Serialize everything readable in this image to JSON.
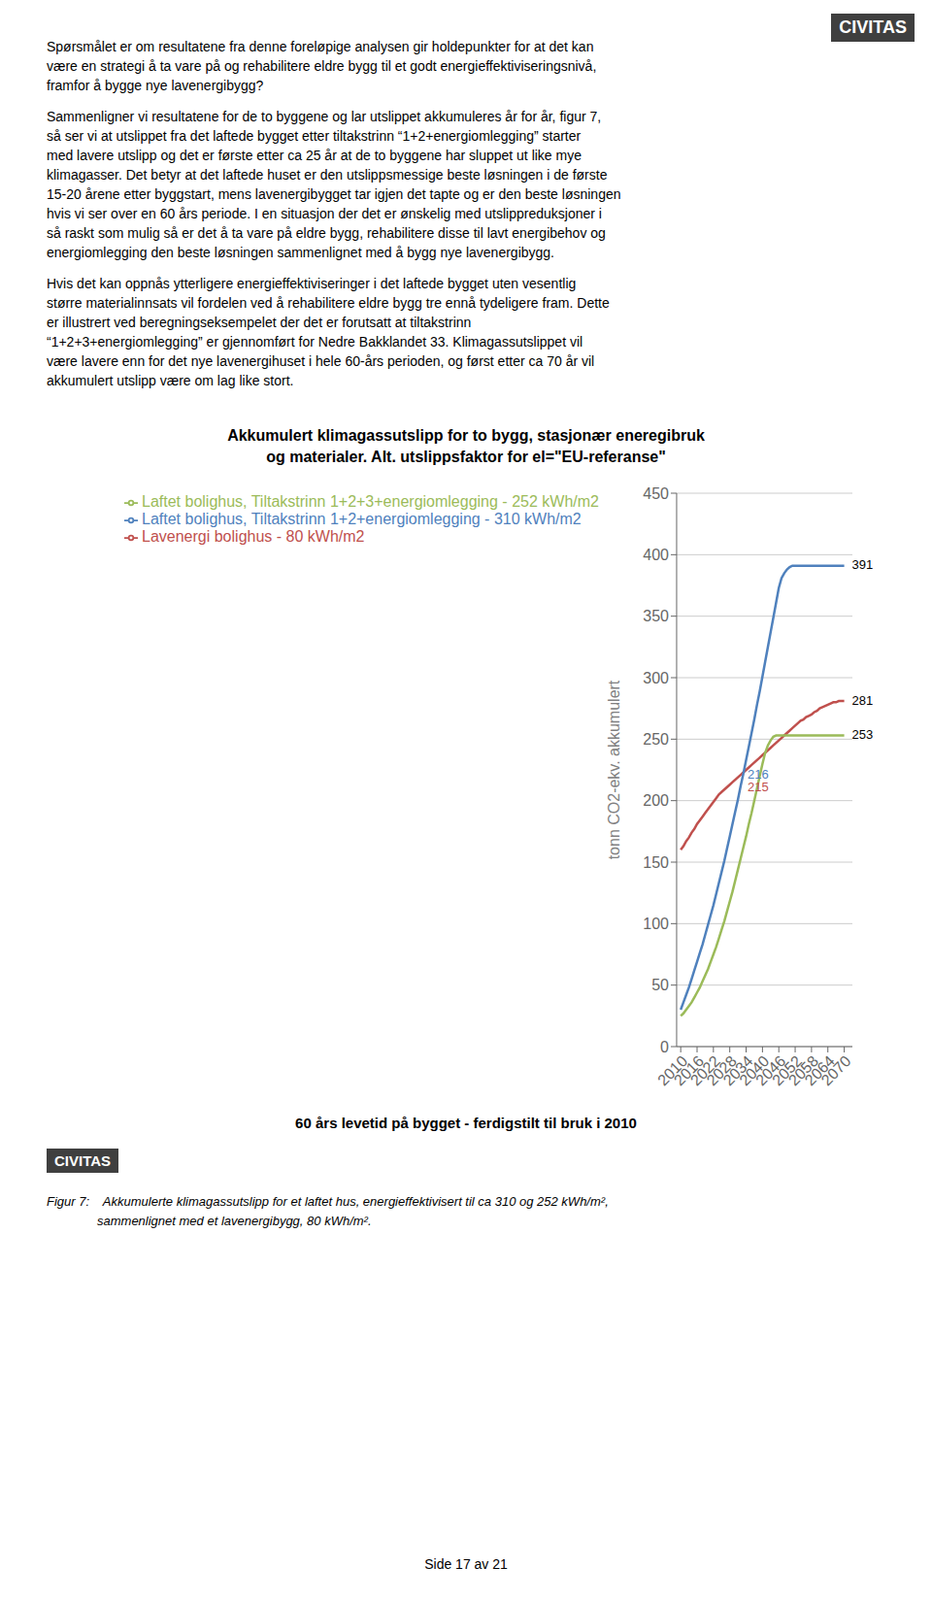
{
  "chart_data": {
    "type": "line",
    "title": "Akkumulert klimagassutslipp for to bygg, stasjonær eneregibruk\nog materialer. Alt. utslippsfaktor for el=\"EU-referanse\"",
    "xlabel": "60 års levetid på bygget - ferdigstilt til bruk i 2010",
    "ylabel": "tonn CO2-ekv. akkumulert",
    "x": [
      2010,
      2011,
      2012,
      2013,
      2014,
      2015,
      2016,
      2017,
      2018,
      2019,
      2020,
      2021,
      2022,
      2023,
      2024,
      2025,
      2026,
      2027,
      2028,
      2029,
      2030,
      2031,
      2032,
      2033,
      2034,
      2035,
      2036,
      2037,
      2038,
      2039,
      2040,
      2041,
      2042,
      2043,
      2044,
      2045,
      2046,
      2047,
      2048,
      2049,
      2050,
      2051,
      2052,
      2053,
      2054,
      2055,
      2056,
      2057,
      2058,
      2059,
      2060,
      2061,
      2062,
      2063,
      2064,
      2065,
      2066,
      2067,
      2068,
      2069,
      2070
    ],
    "series": [
      {
        "name": "Lavenergi bolighus - 80 kWh/m2",
        "color": "#c0504d",
        "values": [
          160,
          163,
          167,
          170,
          174,
          177,
          181,
          184,
          187,
          190,
          193,
          196,
          199,
          202,
          205,
          207,
          209,
          211,
          213,
          215,
          217,
          219,
          221,
          223,
          225,
          227,
          229,
          231,
          233,
          235,
          237,
          239,
          241,
          243,
          245,
          247,
          249,
          251,
          253,
          255,
          257,
          259,
          261,
          263,
          265,
          266,
          268,
          269,
          270,
          272,
          273,
          275,
          276,
          277,
          278,
          279,
          280,
          280,
          281,
          281,
          281
        ]
      },
      {
        "name": "Laftet bolighus, Tiltakstrinn 1+2+energiomlegging -  310 kWh/m2",
        "color": "#4f81bd",
        "values": [
          30,
          36,
          42,
          48,
          55,
          62,
          69,
          76,
          83,
          91,
          99,
          107,
          115,
          124,
          133,
          142,
          151,
          161,
          171,
          181,
          191,
          201,
          212,
          222,
          233,
          244,
          255,
          266,
          278,
          289,
          301,
          313,
          325,
          337,
          349,
          361,
          373,
          381,
          385,
          388,
          390,
          391,
          391,
          391,
          391,
          391,
          391,
          391,
          391,
          391,
          391,
          391,
          391,
          391,
          391,
          391,
          391,
          391,
          391,
          391,
          391
        ]
      },
      {
        "name": "Laftet bolighus, Tiltakstrinn 1+2+3+energiomlegging -  252 kWh/m2",
        "color": "#9bbb59",
        "values": [
          25,
          27,
          30,
          33,
          36,
          40,
          44,
          48,
          53,
          58,
          63,
          69,
          75,
          81,
          88,
          95,
          102,
          110,
          118,
          126,
          135,
          144,
          153,
          162,
          171,
          181,
          190,
          200,
          210,
          220,
          230,
          239,
          245,
          249,
          252,
          253,
          253,
          253,
          253,
          253,
          253,
          253,
          253,
          253,
          253,
          253,
          253,
          253,
          253,
          253,
          253,
          253,
          253,
          253,
          253,
          253,
          253,
          253,
          253,
          253,
          253
        ]
      }
    ],
    "xlim": [
      2008.5,
      2073
    ],
    "ylim": [
      0,
      450
    ],
    "xticks": [
      2010,
      2016,
      2022,
      2028,
      2034,
      2040,
      2046,
      2052,
      2058,
      2064,
      2070
    ],
    "yticks": [
      0,
      50,
      100,
      150,
      200,
      250,
      300,
      350,
      400,
      450
    ],
    "grid": true,
    "legend": "upper left",
    "annotations": [
      {
        "text": "216",
        "x": 2034.5,
        "y": 218,
        "color": "#4f81bd"
      },
      {
        "text": "215",
        "x": 2034.5,
        "y": 208,
        "color": "#c0504d"
      },
      {
        "text": "391",
        "x": 2070,
        "y": 391,
        "color": "#000000"
      },
      {
        "text": "281",
        "x": 2070,
        "y": 281,
        "color": "#000000"
      },
      {
        "text": "253",
        "x": 2070,
        "y": 253,
        "color": "#000000"
      }
    ]
  },
  "page": {
    "text_top": [
      "Spørsmålet er om resultatene fra denne foreløpige analysen gir holdepunkter for at det kan",
      "være en strategi å ta vare på og rehabilitere eldre bygg til et godt energieffektiviseringsnivå,",
      "framfor å bygge nye lavenergibygg?"
    ],
    "text_mid": [
      "Sammenligner vi resultatene for de to byggene og lar utslippet akkumuleres år for år, figur 7,",
      "så ser vi at utslippet fra det laftede bygget etter tiltakstrinn “1+2+energiomlegging” starter",
      "med lavere utslipp og det er første etter ca 25 år at de to byggene har sluppet ut like mye",
      "klimagasser. Det betyr at det laftede huset er den utslippsmessige beste løsningen i de første",
      "15-20 årene etter byggstart, mens lavenergibygget tar igjen det tapte og er den beste løsningen",
      "hvis vi ser over en 60 års periode. I en situasjon der det er ønskelig med utslippreduksjoner i",
      "så raskt som mulig så er det å ta vare på eldre bygg, rehabilitere disse til lavt energibehov og",
      "energiomlegging den beste løsningen sammenlignet med å bygg nye lavenergibygg."
    ],
    "text_bot": [
      "Hvis det kan oppnås ytterligere energieffektiviseringer i det laftede bygget uten vesentlig",
      "større materialinnsats vil fordelen ved å rehabilitere eldre bygg tre ennå tydeligere fram. Dette",
      "er illustrert ved beregningseksempelet der det er forutsatt at tiltakstrinn",
      "“1+2+3+energiomlegging” er gjennomført for Nedre Bakklandet 33. Klimagassutslippet vil",
      "være lavere enn for det nye lavenergihuset i hele 60-års perioden, og først etter ca 70 år vil",
      "akkumulert utslipp være om lag like stort."
    ],
    "caption": [
      "Figur 7:\tAkkumulerte klimagassutslipp for et laftet hus, energieffektivisert til ca 310 og 252 kWh/m²,",
      "sammenlignet med et lavenergibygg, 80 kWh/m²."
    ],
    "logo": "CIVITAS",
    "page_number": "Side 17 av 21"
  }
}
